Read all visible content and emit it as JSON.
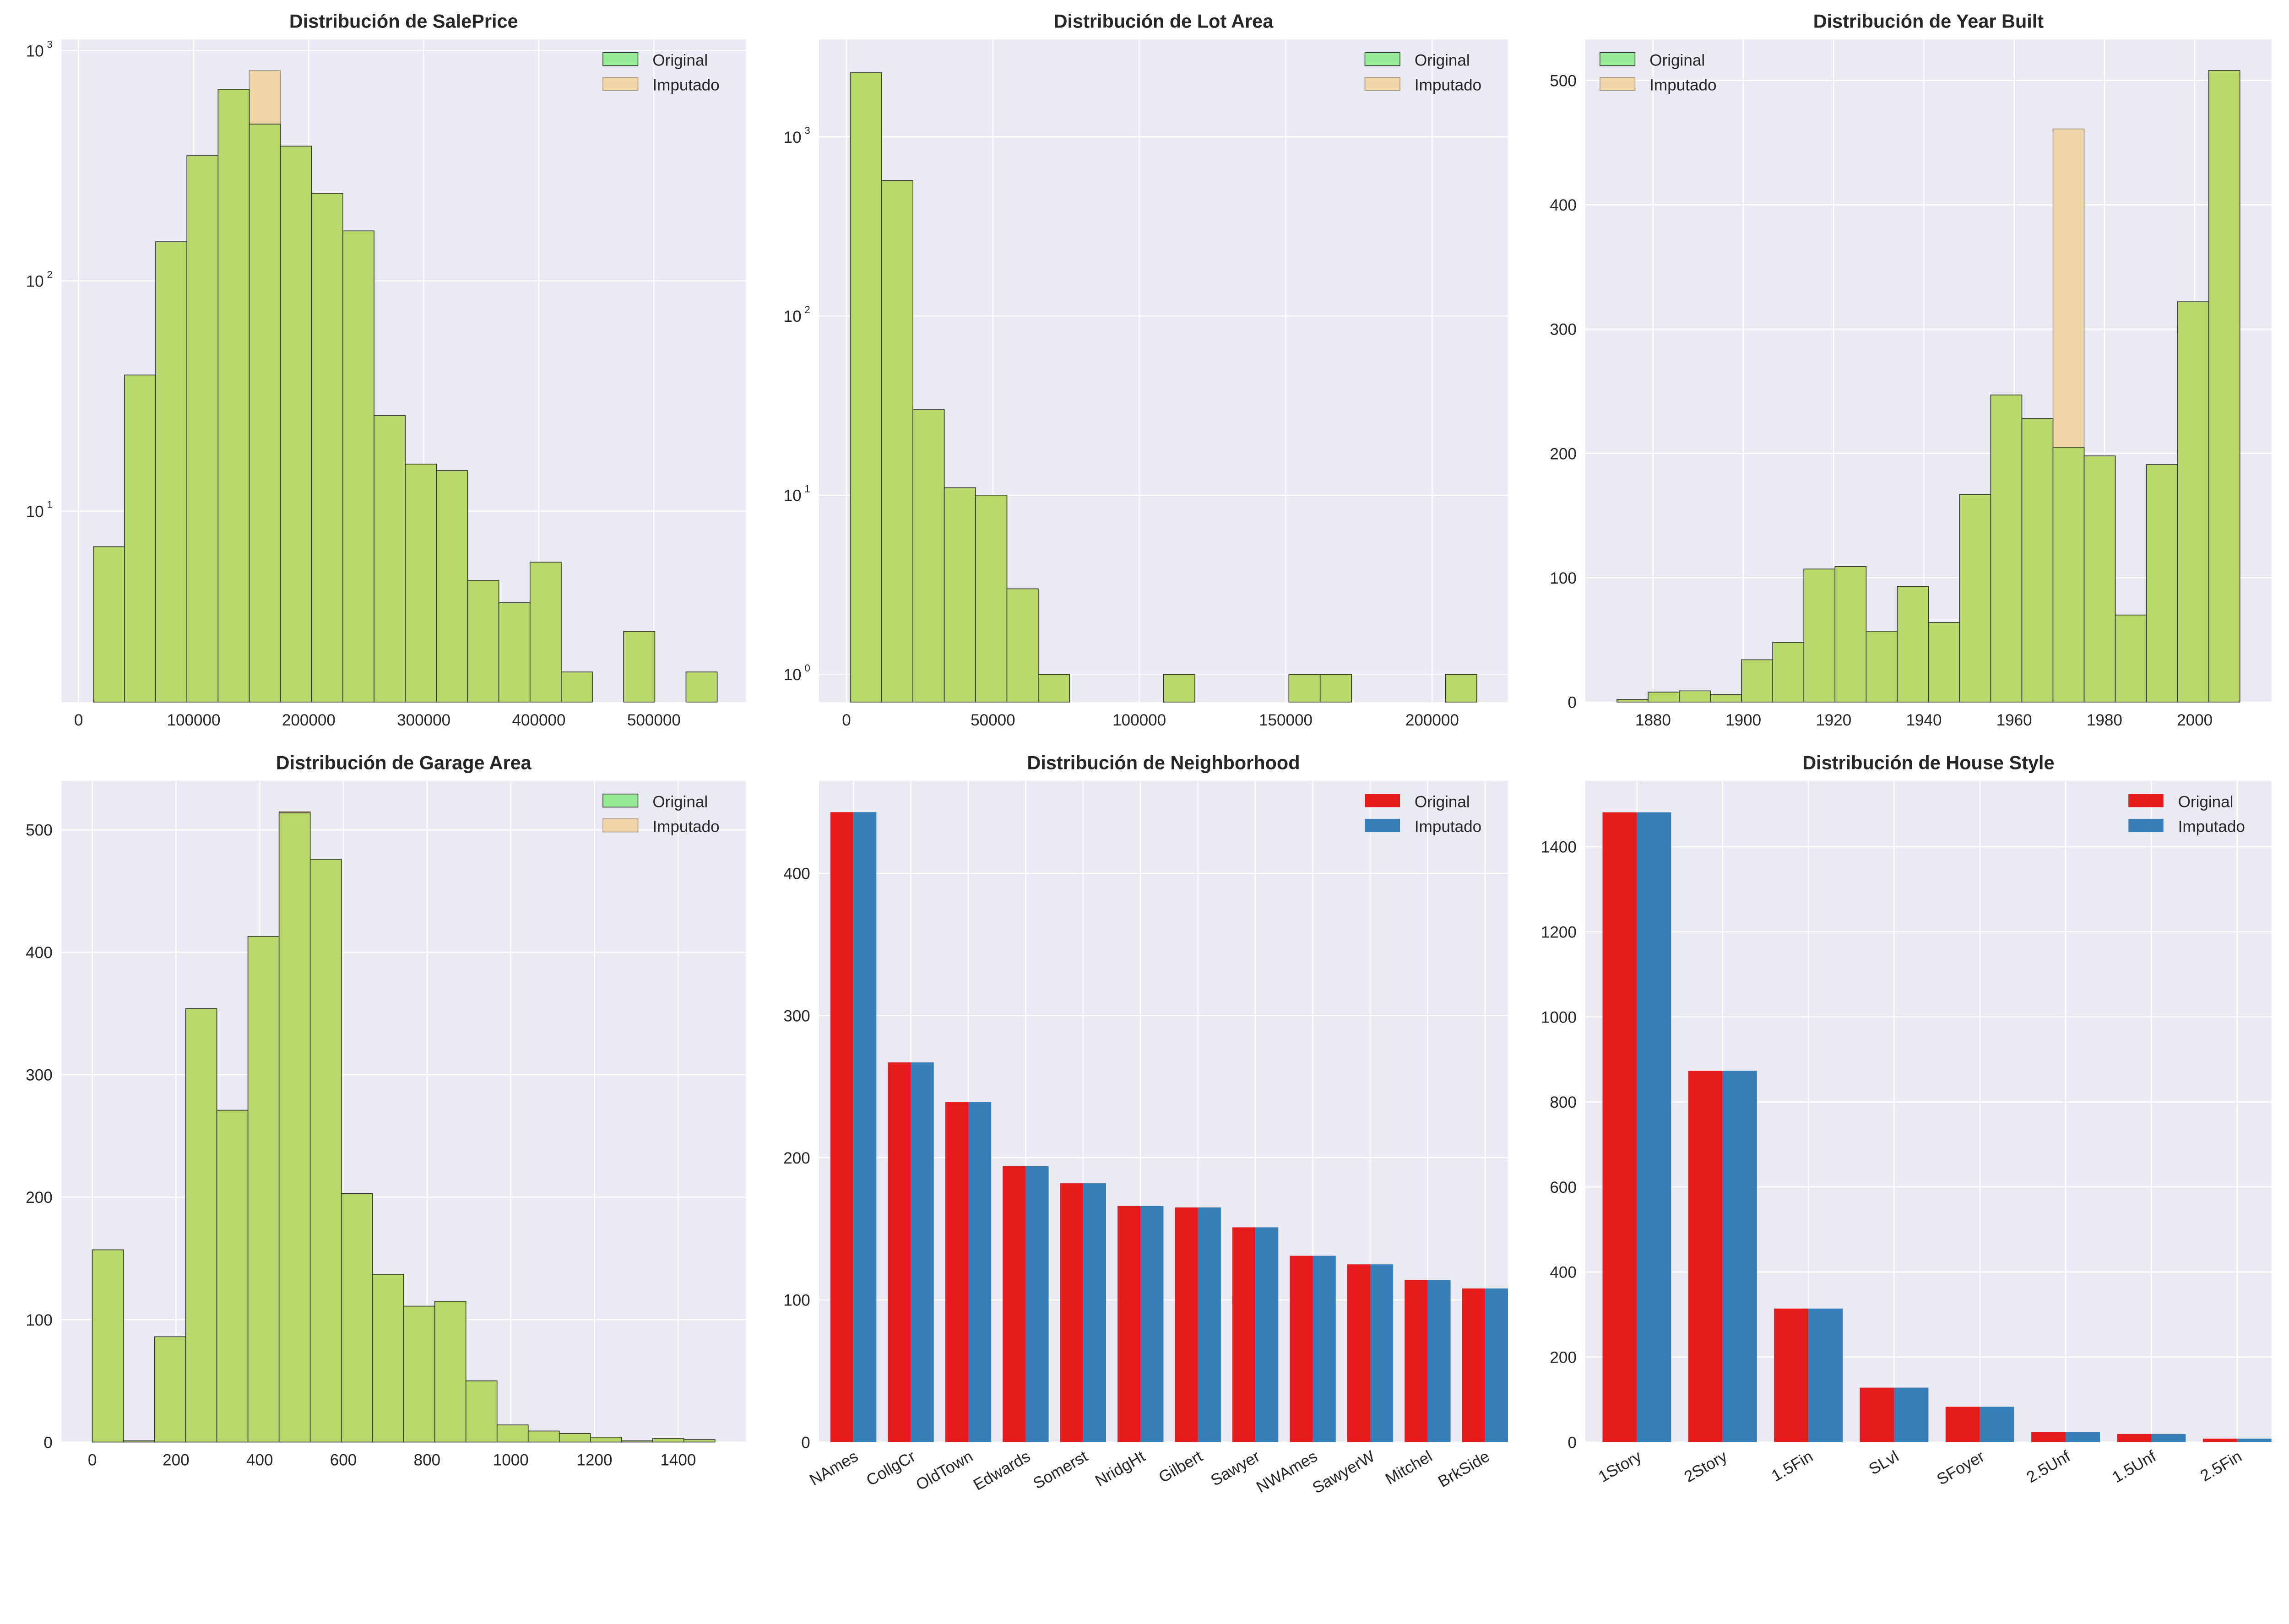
{
  "colors": {
    "hist_original": "#b8d86b",
    "hist_imputed": "#f0d5a8",
    "legend_original": "#98ec98",
    "legend_imputed": "#f0d5a8",
    "bar_original": "#e41a1c",
    "bar_imputed": "#377eb8",
    "axes_bg": "#eaeaf2",
    "grid": "#ffffff"
  },
  "legend": {
    "original": "Original",
    "imputed": "Imputado"
  },
  "chart_data": [
    {
      "type": "bar",
      "subtype": "histogram",
      "title": "Distribución de SalePrice",
      "yscale": "log",
      "grid": true,
      "legend": "top-right",
      "bin_range": [
        12789,
        555000
      ],
      "xlim": [
        -15000,
        580000
      ],
      "ylim": [
        1.48,
        1120
      ],
      "xticks": [
        0,
        100000,
        200000,
        300000,
        400000,
        500000
      ],
      "xtick_labels": [
        "0",
        "100000",
        "200000",
        "300000",
        "400000",
        "500000"
      ],
      "yticks": [
        10,
        100,
        1000
      ],
      "ytick_labels": [
        "10",
        "10",
        "10"
      ],
      "ytick_exp": [
        "1",
        "2",
        "3"
      ],
      "original": [
        7,
        39,
        148,
        350,
        680,
        480,
        385,
        240,
        165,
        26,
        16,
        15,
        5,
        4,
        6,
        2,
        0,
        3,
        0,
        2
      ],
      "imputed": [
        7,
        39,
        148,
        350,
        680,
        820,
        385,
        240,
        165,
        26,
        16,
        15,
        5,
        4,
        6,
        2,
        0,
        3,
        0,
        2
      ]
    },
    {
      "type": "bar",
      "subtype": "histogram",
      "title": "Distribución de Lot Area",
      "yscale": "log",
      "grid": true,
      "legend": "top-right",
      "bin_range": [
        1300,
        215245
      ],
      "xlim": [
        -9400,
        225900
      ],
      "ylim": [
        0.7,
        3500
      ],
      "xticks": [
        0,
        50000,
        100000,
        150000,
        200000
      ],
      "xtick_labels": [
        "0",
        "50000",
        "100000",
        "150000",
        "200000"
      ],
      "yticks": [
        1,
        10,
        100,
        1000
      ],
      "ytick_labels": [
        "10",
        "10",
        "10",
        "10"
      ],
      "ytick_exp": [
        "0",
        "1",
        "2",
        "3"
      ],
      "original": [
        2280,
        570,
        30,
        11,
        10,
        3,
        1,
        0,
        0,
        0,
        1,
        0,
        0,
        0,
        1,
        1,
        0,
        0,
        0,
        1
      ],
      "imputed": [
        2280,
        570,
        30,
        11,
        10,
        3,
        1,
        0,
        0,
        0,
        1,
        0,
        0,
        0,
        1,
        1,
        0,
        0,
        0,
        1
      ]
    },
    {
      "type": "bar",
      "subtype": "histogram",
      "title": "Distribución de Year Built",
      "yscale": "linear",
      "grid": true,
      "legend": "top-left",
      "bin_range": [
        1872,
        2010
      ],
      "xlim": [
        1865,
        2017
      ],
      "ylim": [
        0,
        533
      ],
      "xticks": [
        1880,
        1900,
        1920,
        1940,
        1960,
        1980,
        2000
      ],
      "xtick_labels": [
        "1880",
        "1900",
        "1920",
        "1940",
        "1960",
        "1980",
        "2000"
      ],
      "yticks": [
        0,
        100,
        200,
        300,
        400,
        500
      ],
      "ytick_labels": [
        "0",
        "100",
        "200",
        "300",
        "400",
        "500"
      ],
      "original": [
        2,
        8,
        9,
        6,
        34,
        48,
        107,
        109,
        57,
        93,
        64,
        167,
        247,
        228,
        205,
        198,
        70,
        191,
        322,
        508
      ],
      "imputed": [
        2,
        8,
        9,
        6,
        34,
        48,
        107,
        109,
        57,
        93,
        64,
        167,
        247,
        228,
        461,
        198,
        70,
        191,
        322,
        508
      ]
    },
    {
      "type": "bar",
      "subtype": "histogram",
      "title": "Distribución de Garage Area",
      "yscale": "linear",
      "grid": true,
      "legend": "top-right",
      "bin_range": [
        0,
        1488
      ],
      "xlim": [
        -74,
        1562
      ],
      "ylim": [
        0,
        540
      ],
      "xticks": [
        0,
        200,
        400,
        600,
        800,
        1000,
        1200,
        1400
      ],
      "xtick_labels": [
        "0",
        "200",
        "400",
        "600",
        "800",
        "1000",
        "1200",
        "1400"
      ],
      "yticks": [
        0,
        100,
        200,
        300,
        400,
        500
      ],
      "ytick_labels": [
        "0",
        "100",
        "200",
        "300",
        "400",
        "500"
      ],
      "original": [
        157,
        1,
        86,
        354,
        271,
        413,
        514,
        476,
        203,
        137,
        111,
        115,
        50,
        14,
        9,
        7,
        4,
        1,
        3,
        2
      ],
      "imputed": [
        157,
        1,
        86,
        354,
        271,
        413,
        515,
        476,
        203,
        137,
        111,
        115,
        50,
        14,
        9,
        7,
        4,
        1,
        3,
        2
      ]
    },
    {
      "type": "bar",
      "subtype": "grouped",
      "title": "Distribución de Neighborhood",
      "grid": true,
      "legend": "top-right",
      "ylim": [
        0,
        465
      ],
      "yticks": [
        0,
        100,
        200,
        300,
        400
      ],
      "ytick_labels": [
        "0",
        "100",
        "200",
        "300",
        "400"
      ],
      "categories": [
        "NAmes",
        "CollgCr",
        "OldTown",
        "Edwards",
        "Somerst",
        "NridgHt",
        "Gilbert",
        "Sawyer",
        "NWAmes",
        "SawyerW",
        "Mitchel",
        "BrkSide"
      ],
      "original": [
        443,
        267,
        239,
        194,
        182,
        166,
        165,
        151,
        131,
        125,
        114,
        108
      ],
      "imputed": [
        443,
        267,
        239,
        194,
        182,
        166,
        165,
        151,
        131,
        125,
        114,
        108
      ]
    },
    {
      "type": "bar",
      "subtype": "grouped",
      "title": "Distribución de House Style",
      "grid": true,
      "legend": "top-right",
      "ylim": [
        0,
        1555
      ],
      "yticks": [
        0,
        200,
        400,
        600,
        800,
        1000,
        1200,
        1400
      ],
      "ytick_labels": [
        "0",
        "200",
        "400",
        "600",
        "800",
        "1000",
        "1200",
        "1400"
      ],
      "categories": [
        "1Story",
        "2Story",
        "1.5Fin",
        "SLvl",
        "SFoyer",
        "2.5Unf",
        "1.5Unf",
        "2.5Fin"
      ],
      "original": [
        1481,
        873,
        314,
        128,
        83,
        24,
        19,
        8
      ],
      "imputed": [
        1481,
        873,
        314,
        128,
        83,
        24,
        19,
        8
      ]
    }
  ]
}
